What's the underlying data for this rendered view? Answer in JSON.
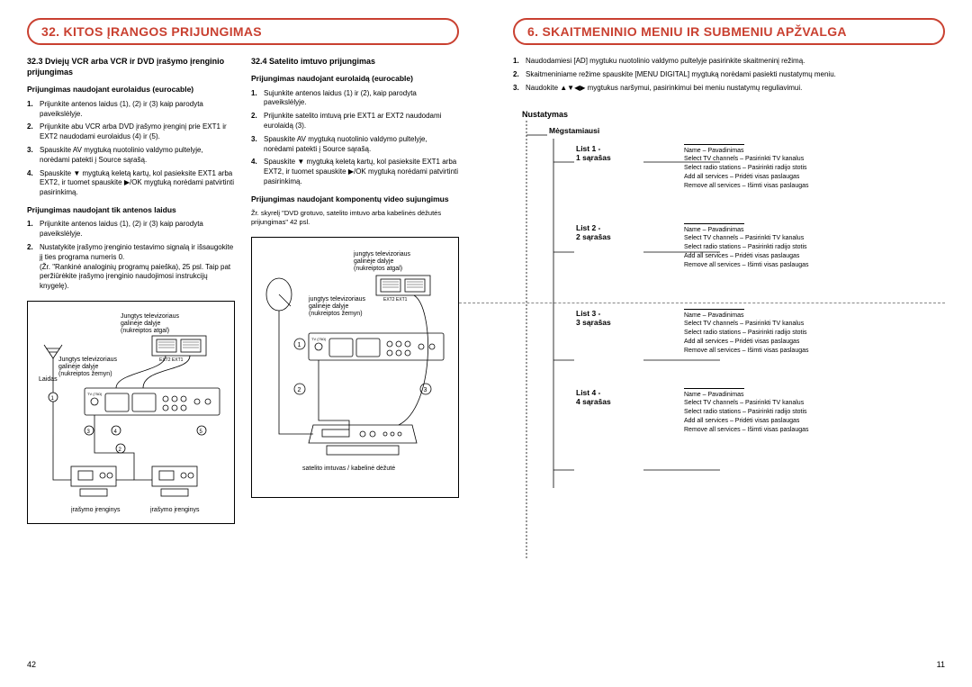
{
  "left": {
    "pageNum": "42",
    "banner": "32. KITOS ĮRANGOS PRIJUNGIMAS",
    "colA": {
      "head": "32.3 Dviejų VCR arba VCR ir DVD įrašymo įrenginio prijungimas",
      "sub1": "Prijungimas naudojant eurolaidus (eurocable)",
      "list1": [
        "Prijunkite antenos laidus (1), (2) ir (3) kaip parodyta paveikslėlyje.",
        "Prijunkite abu VCR arba DVD įrašymo įrenginį prie EXT1 ir EXT2 naudodami eurolaidus (4) ir (5).",
        "Spauskite AV mygtuką nuotolinio valdymo pultelyje, norėdami patekti į Source sąrašą.",
        "Spauskite ▼ mygtuką keletą kartų, kol pasieksite EXT1 arba EXT2, ir tuomet spauskite ▶/OK mygtuką norėdami patvirtinti pasirinkimą."
      ],
      "sub2": "Prijungimas naudojant tik antenos laidus",
      "list2": [
        "Prijunkite antenos laidus (1), (2) ir (3) kaip parodyta paveikslėlyje.",
        "Nustatykite įrašymo įrenginio testavimo signalą ir išsaugokite jį ties programa numeris 0.\n(Žr. \"Rankinė analoginių programų paieška), 25 psl. Taip pat peržiūrėkite įrašymo įrenginio naudojimosi instrukcijų knygelę)."
      ],
      "diagLabels": {
        "a": "Jungtys televizoriaus galinėje dalyje (nukreiptos atgal)",
        "b": "Jungtys televizoriaus galinėje dalyje (nukreiptos žemyn)",
        "c": "Laidas",
        "rec1": "įrašymo įrenginys",
        "rec2": "įrašymo įrenginys"
      }
    },
    "colB": {
      "head": "32.4 Satelito imtuvo prijungimas",
      "sub1": "Prijungimas naudojant eurolaidą (eurocable)",
      "list1": [
        "Sujunkite antenos laidus (1) ir (2), kaip parodyta paveikslėlyje.",
        "Prijunkite satelito imtuvą prie EXT1 ar EXT2 naudodami eurolaidą (3).",
        "Spauskite AV mygtuką nuotolinio valdymo pultelyje, norėdami patekti į Source sąrašą.",
        "Spauskite ▼ mygtuką keletą kartų, kol pasieksite EXT1 arba EXT2, ir tuomet spauskite ▶/OK mygtuką norėdami patvirtinti pasirinkimą."
      ],
      "sub2": "Prijungimas naudojant komponentų video sujungimus",
      "note": "Žr. skyrelį \"DVD grotuvo, satelito imtuvo arba kabelinės dėžutės prijungimas\" 42 psl.",
      "diagLabels": {
        "a": "jungtys televizoriaus galinėje dalyje (nukreiptos atgal)",
        "b": "jungtys televizoriaus galinėje dalyje (nukreiptos žemyn)",
        "sat": "satelito imtuvas / kabelinė dėžutė"
      }
    }
  },
  "right": {
    "pageNum": "11",
    "banner": "6. SKAITMENINIO MENIU IR SUBMENIU APŽVALGA",
    "intro": [
      "Naudodamiesi [AD] mygtuku nuotolinio valdymo pultelyje pasirinkite skaitmeninį režimą.",
      "Skaitmeniniame režime spauskite [MENU DIGITAL] mygtuką norėdami pasiekti nustatymų meniu.",
      "Naudokite ▲▼◀▶ mygtukus naršymui, pasirinkimui bei meniu nustatymų reguliavimui."
    ],
    "tree": {
      "root": "Nustatymas",
      "lvl1": "Mėgstamiausi",
      "lists": [
        {
          "label": "List 1 -\n1 sąrašas"
        },
        {
          "label": "List 2 -\n2 sąrašas"
        },
        {
          "label": "List 3 -\n3 sąrašas"
        },
        {
          "label": "List 4 -\n4 sąrašas"
        }
      ],
      "detailLines": [
        "Name – Pavadinimas",
        "Select TV channels – Pasirinkti TV kanalus",
        "Select radio stations – Pasirinkti radijo stotis",
        "Add all services – Pridėti visas paslaugas",
        "Remove all services – Išimti visas paslaugas"
      ]
    }
  },
  "colors": {
    "accent": "#c94030",
    "text": "#000000",
    "border": "#000000"
  }
}
